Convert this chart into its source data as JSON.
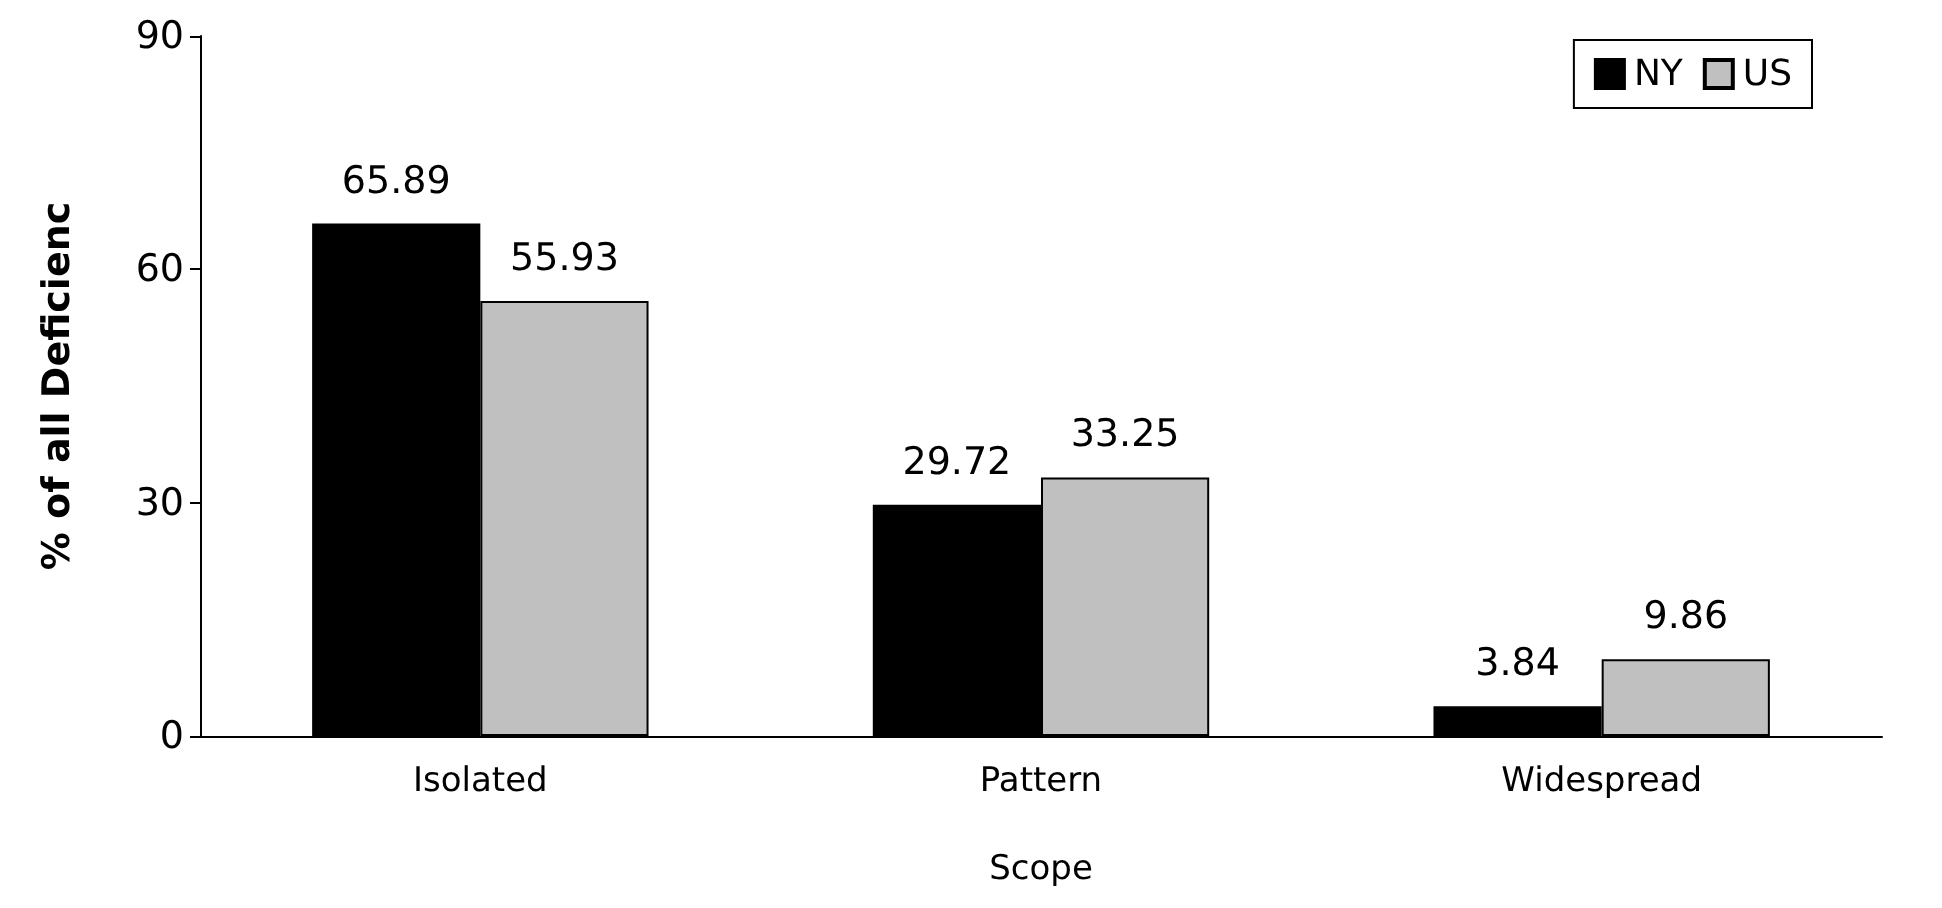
{
  "chart_data": {
    "type": "bar",
    "xlabel": "Scope",
    "ylabel": "% of all Deficienc",
    "categories": [
      "Isolated",
      "Pattern",
      "Widespread"
    ],
    "series": [
      {
        "name": "NY",
        "color": "#000000",
        "values": [
          65.89,
          29.72,
          3.84
        ]
      },
      {
        "name": "US",
        "color": "#c0c0c0",
        "values": [
          55.93,
          33.25,
          9.86
        ]
      }
    ],
    "ylim": [
      0,
      90
    ],
    "yticks": [
      0,
      30,
      60,
      90
    ],
    "legend": "top right",
    "data_labels": true
  }
}
